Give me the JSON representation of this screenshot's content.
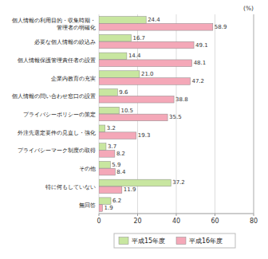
{
  "chart_data": {
    "type": "bar",
    "orientation": "horizontal",
    "categories": [
      "個人情報の利用目的・収集時期・\n管理者の明確化",
      "必要な個人情報の絞込み",
      "個人情報保護管理責任者の設置",
      "企業内教育の充実",
      "個人情報の問い合わせ窓口の設置",
      "プライバシーポリシーの策定",
      "外注先選定要件の見直し・強化",
      "プライバシーマーク制度の取得",
      "その他",
      "特に何もしていない",
      "無回答"
    ],
    "series": [
      {
        "name": "平成15年度",
        "color": "#c8e6a0",
        "values": [
          24.4,
          16.7,
          14.4,
          21.0,
          9.6,
          10.5,
          3.2,
          3.7,
          5.9,
          37.2,
          6.2
        ],
        "value_labels": [
          "24.4",
          "16.7",
          "14.4",
          "21.0",
          "9.6",
          "10.5",
          "3.2",
          "3.7",
          "5.9",
          "37.2",
          "6.2"
        ]
      },
      {
        "name": "平成16年度",
        "color": "#f4a8b8",
        "values": [
          58.9,
          49.1,
          48.1,
          47.2,
          38.8,
          35.5,
          19.3,
          8.2,
          8.4,
          11.9,
          1.9
        ],
        "value_labels": [
          "58.9",
          "49.1",
          "48.1",
          "47.2",
          "38.8",
          "35.5",
          "19.3",
          "8.2",
          "8.4",
          "11.9",
          "1.9"
        ]
      }
    ],
    "annotation": "(%)",
    "xlim": [
      0,
      80
    ],
    "xticks": [
      0,
      20,
      40,
      60,
      80
    ],
    "grid": true,
    "data_labels": true,
    "legend": "bottom"
  }
}
